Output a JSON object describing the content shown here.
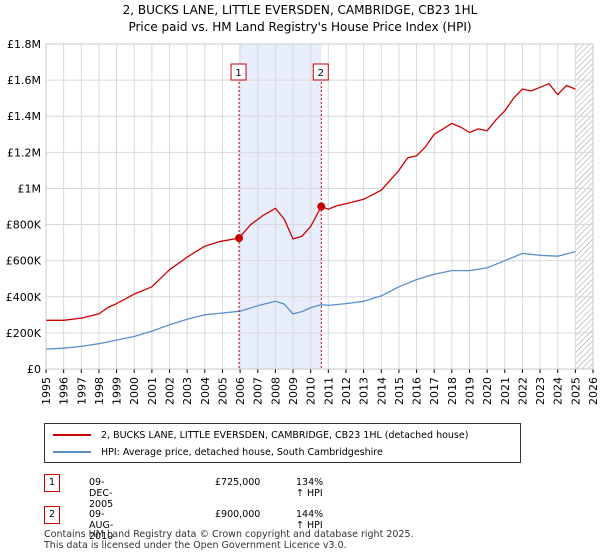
{
  "title_line1": "2, BUCKS LANE, LITTLE EVERSDEN, CAMBRIDGE, CB23 1HL",
  "title_line2": "Price paid vs. HM Land Registry's House Price Index (HPI)",
  "colors": {
    "property": "#cc0000",
    "hpi": "#5b8ecb",
    "shade": "#e8eefb",
    "grid": "#d9d9d9",
    "marker": "#cc0000"
  },
  "chart_data": {
    "type": "line",
    "title": "2, BUCKS LANE, LITTLE EVERSDEN, CAMBRIDGE, CB23 1HL — Price paid vs. HM Land Registry's House Price Index (HPI)",
    "xlim": [
      1995,
      2026
    ],
    "ylim": [
      0,
      1800000
    ],
    "x_ticks": [
      "1995",
      "1996",
      "1997",
      "1998",
      "1999",
      "2000",
      "2001",
      "2002",
      "2003",
      "2004",
      "2005",
      "2006",
      "2007",
      "2008",
      "2009",
      "2010",
      "2011",
      "2012",
      "2013",
      "2014",
      "2015",
      "2016",
      "2017",
      "2018",
      "2019",
      "2020",
      "2021",
      "2022",
      "2023",
      "2024",
      "2025",
      "2026"
    ],
    "y_ticks": [
      {
        "value": 0,
        "label": "£0"
      },
      {
        "value": 200000,
        "label": "£200K"
      },
      {
        "value": 400000,
        "label": "£400K"
      },
      {
        "value": 600000,
        "label": "£600K"
      },
      {
        "value": 800000,
        "label": "£800K"
      },
      {
        "value": 1000000,
        "label": "£1M"
      },
      {
        "value": 1200000,
        "label": "£1.2M"
      },
      {
        "value": 1400000,
        "label": "£1.4M"
      },
      {
        "value": 1600000,
        "label": "£1.6M"
      },
      {
        "value": 1800000,
        "label": "£1.8M"
      }
    ],
    "shaded_range": [
      2005.94,
      2010.6
    ],
    "hatched_from": 2025.0,
    "series": [
      {
        "name": "2, BUCKS LANE, LITTLE EVERSDEN, CAMBRIDGE, CB23 1HL (detached house)",
        "points": [
          [
            1995,
            270000
          ],
          [
            1996,
            270000
          ],
          [
            1997,
            282000
          ],
          [
            1998,
            305000
          ],
          [
            1998.5,
            340000
          ],
          [
            1999,
            362000
          ],
          [
            2000,
            415000
          ],
          [
            2001,
            455000
          ],
          [
            2002,
            550000
          ],
          [
            2003,
            620000
          ],
          [
            2004,
            680000
          ],
          [
            2004.8,
            705000
          ],
          [
            2005.94,
            725000
          ],
          [
            2006.6,
            800000
          ],
          [
            2007.3,
            850000
          ],
          [
            2008.0,
            890000
          ],
          [
            2008.5,
            830000
          ],
          [
            2009.0,
            720000
          ],
          [
            2009.5,
            735000
          ],
          [
            2010.0,
            790000
          ],
          [
            2010.6,
            900000
          ],
          [
            2011.0,
            885000
          ],
          [
            2011.5,
            905000
          ],
          [
            2012,
            915000
          ],
          [
            2013,
            940000
          ],
          [
            2014,
            990000
          ],
          [
            2015,
            1100000
          ],
          [
            2015.5,
            1170000
          ],
          [
            2016,
            1180000
          ],
          [
            2016.5,
            1230000
          ],
          [
            2017,
            1300000
          ],
          [
            2017.5,
            1330000
          ],
          [
            2018,
            1360000
          ],
          [
            2018.5,
            1340000
          ],
          [
            2019,
            1310000
          ],
          [
            2019.5,
            1330000
          ],
          [
            2020,
            1320000
          ],
          [
            2020.5,
            1380000
          ],
          [
            2021,
            1430000
          ],
          [
            2021.5,
            1500000
          ],
          [
            2022,
            1550000
          ],
          [
            2022.5,
            1540000
          ],
          [
            2023,
            1560000
          ],
          [
            2023.5,
            1580000
          ],
          [
            2024,
            1520000
          ],
          [
            2024.5,
            1570000
          ],
          [
            2025.0,
            1550000
          ]
        ]
      },
      {
        "name": "HPI: Average price, detached house, South Cambridgeshire",
        "points": [
          [
            1995,
            110000
          ],
          [
            1996,
            115000
          ],
          [
            1997,
            125000
          ],
          [
            1998,
            140000
          ],
          [
            1999,
            160000
          ],
          [
            2000,
            180000
          ],
          [
            2001,
            210000
          ],
          [
            2002,
            245000
          ],
          [
            2003,
            275000
          ],
          [
            2004,
            300000
          ],
          [
            2005,
            310000
          ],
          [
            2006,
            320000
          ],
          [
            2007,
            350000
          ],
          [
            2008,
            375000
          ],
          [
            2008.5,
            360000
          ],
          [
            2009,
            305000
          ],
          [
            2009.5,
            318000
          ],
          [
            2010,
            340000
          ],
          [
            2010.6,
            356000
          ],
          [
            2011,
            352000
          ],
          [
            2012,
            362000
          ],
          [
            2013,
            375000
          ],
          [
            2014,
            405000
          ],
          [
            2015,
            455000
          ],
          [
            2016,
            495000
          ],
          [
            2017,
            525000
          ],
          [
            2018,
            545000
          ],
          [
            2019,
            545000
          ],
          [
            2020,
            560000
          ],
          [
            2021,
            600000
          ],
          [
            2022,
            640000
          ],
          [
            2023,
            630000
          ],
          [
            2024,
            625000
          ],
          [
            2025,
            650000
          ]
        ]
      }
    ],
    "sales": [
      {
        "label": "1",
        "x": 2005.94,
        "y": 725000
      },
      {
        "label": "2",
        "x": 2010.6,
        "y": 900000
      }
    ]
  },
  "legend": {
    "property": "2, BUCKS LANE, LITTLE EVERSDEN, CAMBRIDGE, CB23 1HL (detached house)",
    "hpi": "HPI: Average price, detached house, South Cambridgeshire"
  },
  "transactions": [
    {
      "marker": "1",
      "date": "09-DEC-2005",
      "price": "£725,000",
      "hpi": "134% ↑ HPI"
    },
    {
      "marker": "2",
      "date": "09-AUG-2010",
      "price": "£900,000",
      "hpi": "144% ↑ HPI"
    }
  ],
  "footer_line1": "Contains HM Land Registry data © Crown copyright and database right 2025.",
  "footer_line2": "This data is licensed under the Open Government Licence v3.0."
}
